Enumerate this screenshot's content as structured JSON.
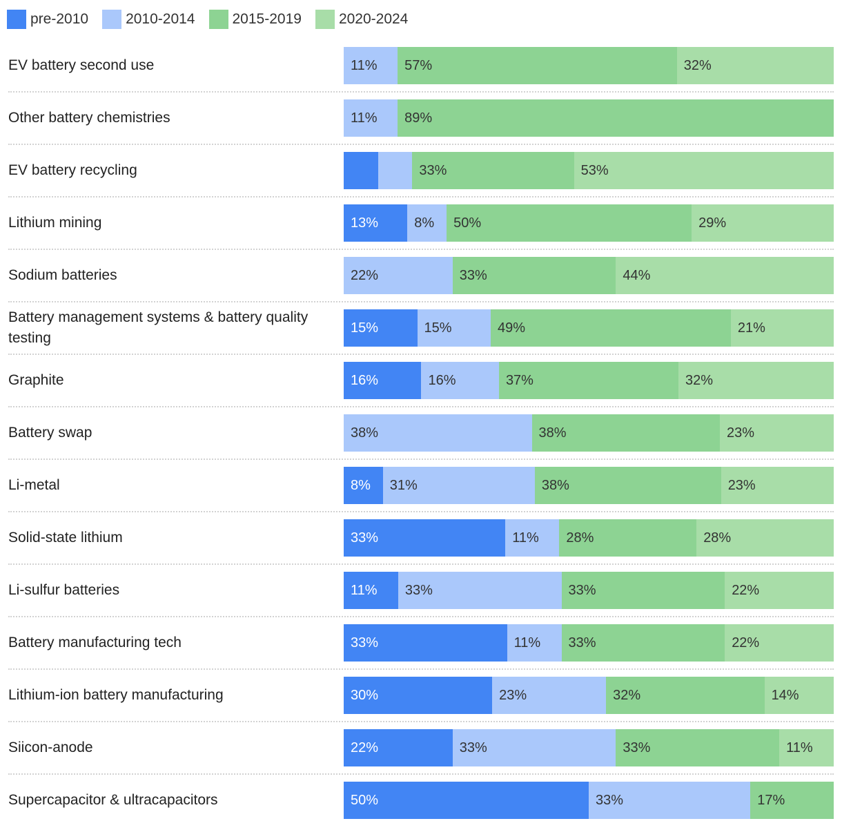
{
  "chart_data": {
    "type": "bar",
    "orientation": "horizontal",
    "stacked": true,
    "normalized": true,
    "title": "",
    "xlabel": "",
    "ylabel": "",
    "xlim": [
      0,
      100
    ],
    "legend_position": "top-left",
    "colors": {
      "pre-2010": "#4285f4",
      "2010-2014": "#aac8fb",
      "2015-2019": "#8dd393",
      "2020-2024": "#a8dda8"
    },
    "label_colors": {
      "pre-2010": "#ffffff",
      "2010-2014": "#333333",
      "2015-2019": "#333333",
      "2020-2024": "#333333"
    },
    "legend": [
      {
        "name": "pre-2010"
      },
      {
        "name": "2010-2014"
      },
      {
        "name": "2015-2019"
      },
      {
        "name": "2020-2024"
      }
    ],
    "categories": [
      "EV battery second use",
      "Other battery chemistries",
      "EV battery recycling",
      "Lithium mining",
      "Sodium batteries",
      "Battery management systems & battery quality testing",
      "Graphite",
      "Battery swap",
      "Li-metal",
      "Solid-state lithium",
      "Li-sulfur batteries",
      "Battery manufacturing tech",
      "Lithium-ion battery manufacturing",
      "Siicon-anode",
      "Supercapacitor & ultracapacitors"
    ],
    "series": [
      {
        "name": "pre-2010",
        "values": [
          0,
          0,
          7,
          13,
          0,
          15,
          16,
          0,
          8,
          33,
          11,
          33,
          30,
          22,
          50
        ],
        "labels": [
          "",
          "",
          "",
          "13%",
          "",
          "15%",
          "16%",
          "",
          "8%",
          "33%",
          "11%",
          "33%",
          "30%",
          "22%",
          "50%"
        ]
      },
      {
        "name": "2010-2014",
        "values": [
          11,
          11,
          7,
          8,
          22,
          15,
          16,
          38,
          31,
          11,
          33,
          11,
          23,
          33,
          33
        ],
        "labels": [
          "11%",
          "11%",
          "",
          "8%",
          "22%",
          "15%",
          "16%",
          "38%",
          "31%",
          "11%",
          "33%",
          "11%",
          "23%",
          "33%",
          "33%"
        ]
      },
      {
        "name": "2015-2019",
        "values": [
          57,
          89,
          33,
          50,
          33,
          49,
          37,
          38,
          38,
          28,
          33,
          33,
          32,
          33,
          17
        ],
        "labels": [
          "57%",
          "89%",
          "33%",
          "50%",
          "33%",
          "49%",
          "37%",
          "38%",
          "38%",
          "28%",
          "33%",
          "33%",
          "32%",
          "33%",
          "17%"
        ]
      },
      {
        "name": "2020-2024",
        "values": [
          32,
          0,
          53,
          29,
          44,
          21,
          32,
          23,
          23,
          28,
          22,
          22,
          14,
          11,
          0
        ],
        "labels": [
          "32%",
          "",
          "53%",
          "29%",
          "44%",
          "21%",
          "32%",
          "23%",
          "23%",
          "28%",
          "22%",
          "22%",
          "14%",
          "11%",
          ""
        ]
      }
    ]
  }
}
